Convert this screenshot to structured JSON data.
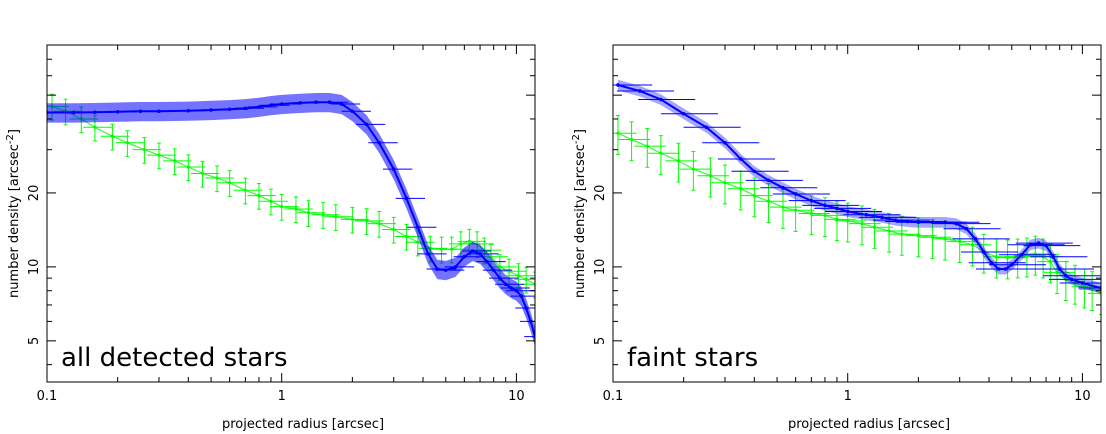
{
  "chart_data": [
    {
      "type": "scatter",
      "title": "",
      "annotation": "all detected stars",
      "xlabel": "projected radius [arcsec]",
      "ylabel_text": "number density [arcsec",
      "ylabel_sup": "-2",
      "ylabel_close": "]",
      "xscale": "log",
      "yscale": "log",
      "xlim": [
        0.1,
        12
      ],
      "ylim": [
        3.4,
        80
      ],
      "xticks": [
        {
          "value": 0.1,
          "label": "0.1"
        },
        {
          "value": 1,
          "label": "1"
        },
        {
          "value": 10,
          "label": "10"
        }
      ],
      "yticks": [
        {
          "value": 5,
          "label": "5"
        },
        {
          "value": 10,
          "label": "10"
        },
        {
          "value": 20,
          "label": "20"
        }
      ],
      "grid": false,
      "series": [
        {
          "name": "green",
          "color": "#00ff00",
          "style": "points-with-errorbars",
          "points": [
            [
              0.105,
              45
            ],
            [
              0.12,
              43
            ],
            [
              0.14,
              40
            ],
            [
              0.16,
              37
            ],
            [
              0.19,
              34
            ],
            [
              0.22,
              32
            ],
            [
              0.26,
              30
            ],
            [
              0.3,
              28.5
            ],
            [
              0.35,
              27
            ],
            [
              0.4,
              25.5
            ],
            [
              0.46,
              24
            ],
            [
              0.53,
              23
            ],
            [
              0.6,
              22
            ],
            [
              0.7,
              20.5
            ],
            [
              0.8,
              19.5
            ],
            [
              0.9,
              18.5
            ],
            [
              1.0,
              17.6
            ],
            [
              1.15,
              17.2
            ],
            [
              1.3,
              16.6
            ],
            [
              1.5,
              16.3
            ],
            [
              1.7,
              16
            ],
            [
              2.0,
              15.6
            ],
            [
              2.3,
              15.4
            ],
            [
              2.6,
              15
            ],
            [
              3.0,
              14.2
            ],
            [
              3.4,
              13.3
            ],
            [
              3.8,
              12.6
            ],
            [
              4.3,
              11.9
            ],
            [
              4.8,
              11.8
            ],
            [
              5.3,
              11.8
            ],
            [
              5.8,
              12.4
            ],
            [
              6.3,
              12.7
            ],
            [
              6.8,
              12.4
            ],
            [
              7.3,
              11.7
            ],
            [
              7.8,
              11
            ],
            [
              8.5,
              10
            ],
            [
              9.3,
              9.6
            ],
            [
              10.2,
              9.2
            ],
            [
              11.0,
              8.9
            ],
            [
              12,
              8.5
            ]
          ],
          "xerr_frac": 0.18,
          "yerr_frac": 0.12
        },
        {
          "name": "blue",
          "color": "#0000ff",
          "style": "band-with-xerr",
          "points": [
            [
              0.1,
              42.5
            ],
            [
              0.13,
              42.5
            ],
            [
              0.16,
              42.6
            ],
            [
              0.2,
              42.8
            ],
            [
              0.25,
              43
            ],
            [
              0.3,
              43
            ],
            [
              0.4,
              43.2
            ],
            [
              0.5,
              43.5
            ],
            [
              0.6,
              43.8
            ],
            [
              0.7,
              44.2
            ],
            [
              0.8,
              44.8
            ],
            [
              0.9,
              45.5
            ],
            [
              1.0,
              46
            ],
            [
              1.2,
              46.5
            ],
            [
              1.4,
              46.8
            ],
            [
              1.6,
              46.8
            ],
            [
              1.8,
              46
            ],
            [
              2.0,
              43
            ],
            [
              2.3,
              38
            ],
            [
              2.6,
              32
            ],
            [
              3.0,
              25
            ],
            [
              3.4,
              19
            ],
            [
              3.8,
              14.5
            ],
            [
              4.2,
              11.3
            ],
            [
              4.6,
              9.8
            ],
            [
              5.0,
              9.7
            ],
            [
              5.5,
              10
            ],
            [
              6.0,
              11
            ],
            [
              6.5,
              11.6
            ],
            [
              7.0,
              11.3
            ],
            [
              7.5,
              10.5
            ],
            [
              8.0,
              9.7
            ],
            [
              8.5,
              9
            ],
            [
              9.0,
              8.5
            ],
            [
              9.5,
              8.2
            ],
            [
              10.0,
              8
            ],
            [
              10.5,
              7.6
            ],
            [
              11.0,
              6.8
            ],
            [
              11.5,
              6
            ],
            [
              12.0,
              5.2
            ]
          ],
          "xerr_frac": 0.2,
          "band_width_frac": 0.09
        }
      ]
    },
    {
      "type": "scatter",
      "title": "",
      "annotation": "faint stars",
      "xlabel": "projected radius [arcsec]",
      "ylabel_text": "number density [arcsec",
      "ylabel_sup": "-2",
      "ylabel_close": "]",
      "xscale": "log",
      "yscale": "log",
      "xlim": [
        0.1,
        12
      ],
      "ylim": [
        3.4,
        80
      ],
      "xticks": [
        {
          "value": 0.1,
          "label": "0.1"
        },
        {
          "value": 1,
          "label": "1"
        },
        {
          "value": 10,
          "label": "10"
        }
      ],
      "yticks": [
        {
          "value": 5,
          "label": "5"
        },
        {
          "value": 10,
          "label": "10"
        },
        {
          "value": 20,
          "label": "20"
        }
      ],
      "grid": false,
      "series": [
        {
          "name": "green",
          "color": "#00ff00",
          "style": "points-with-errorbars",
          "points": [
            [
              0.105,
              35
            ],
            [
              0.12,
              33
            ],
            [
              0.14,
              31
            ],
            [
              0.16,
              29
            ],
            [
              0.19,
              27
            ],
            [
              0.22,
              25
            ],
            [
              0.26,
              23.5
            ],
            [
              0.3,
              22
            ],
            [
              0.35,
              20.8
            ],
            [
              0.4,
              19.5
            ],
            [
              0.46,
              18.5
            ],
            [
              0.53,
              17.5
            ],
            [
              0.6,
              17
            ],
            [
              0.7,
              16.5
            ],
            [
              0.8,
              16.2
            ],
            [
              0.9,
              15.6
            ],
            [
              1.0,
              15.4
            ],
            [
              1.15,
              15
            ],
            [
              1.3,
              14.5
            ],
            [
              1.5,
              14
            ],
            [
              1.7,
              13.6
            ],
            [
              2.0,
              13.4
            ],
            [
              2.3,
              13.2
            ],
            [
              2.6,
              13
            ],
            [
              3.0,
              12.7
            ],
            [
              3.4,
              12.3
            ],
            [
              3.8,
              11.5
            ],
            [
              4.3,
              11
            ],
            [
              4.8,
              10.9
            ],
            [
              5.3,
              11
            ],
            [
              5.8,
              11.1
            ],
            [
              6.3,
              11.3
            ],
            [
              6.8,
              11
            ],
            [
              7.3,
              10.5
            ],
            [
              7.8,
              9.5
            ],
            [
              8.5,
              8.9
            ],
            [
              9.3,
              8.6
            ],
            [
              10.2,
              8.3
            ],
            [
              11.0,
              8.1
            ],
            [
              12,
              7.8
            ]
          ],
          "xerr_frac": 0.2,
          "yerr_frac": 0.18
        },
        {
          "name": "blue",
          "color": "#0000ff",
          "style": "line-with-xerr",
          "points": [
            [
              0.105,
              55
            ],
            [
              0.13,
              52
            ],
            [
              0.16,
              48
            ],
            [
              0.2,
              42
            ],
            [
              0.25,
              37
            ],
            [
              0.3,
              32
            ],
            [
              0.35,
              27.5
            ],
            [
              0.4,
              24.5
            ],
            [
              0.46,
              22.5
            ],
            [
              0.53,
              21
            ],
            [
              0.6,
              19.8
            ],
            [
              0.7,
              18.6
            ],
            [
              0.8,
              17.8
            ],
            [
              0.9,
              17.3
            ],
            [
              1.0,
              16.8
            ],
            [
              1.2,
              16.3
            ],
            [
              1.4,
              15.9
            ],
            [
              1.6,
              15.5
            ],
            [
              1.8,
              15.3
            ],
            [
              2.0,
              15.2
            ],
            [
              2.3,
              15.2
            ],
            [
              2.6,
              15.2
            ],
            [
              2.9,
              15
            ],
            [
              3.2,
              14.3
            ],
            [
              3.5,
              13
            ],
            [
              3.8,
              11.5
            ],
            [
              4.1,
              10.4
            ],
            [
              4.4,
              9.8
            ],
            [
              4.7,
              9.8
            ],
            [
              5.0,
              10.2
            ],
            [
              5.5,
              11.2
            ],
            [
              6.0,
              12.3
            ],
            [
              6.5,
              12.5
            ],
            [
              7.0,
              12.2
            ],
            [
              7.5,
              11
            ],
            [
              8.0,
              9.8
            ],
            [
              8.5,
              9.2
            ],
            [
              9.0,
              8.9
            ],
            [
              10.0,
              8.6
            ],
            [
              12.0,
              8.2
            ]
          ],
          "xerr_frac": 0.4,
          "band_width_frac": 0.05
        }
      ]
    }
  ]
}
